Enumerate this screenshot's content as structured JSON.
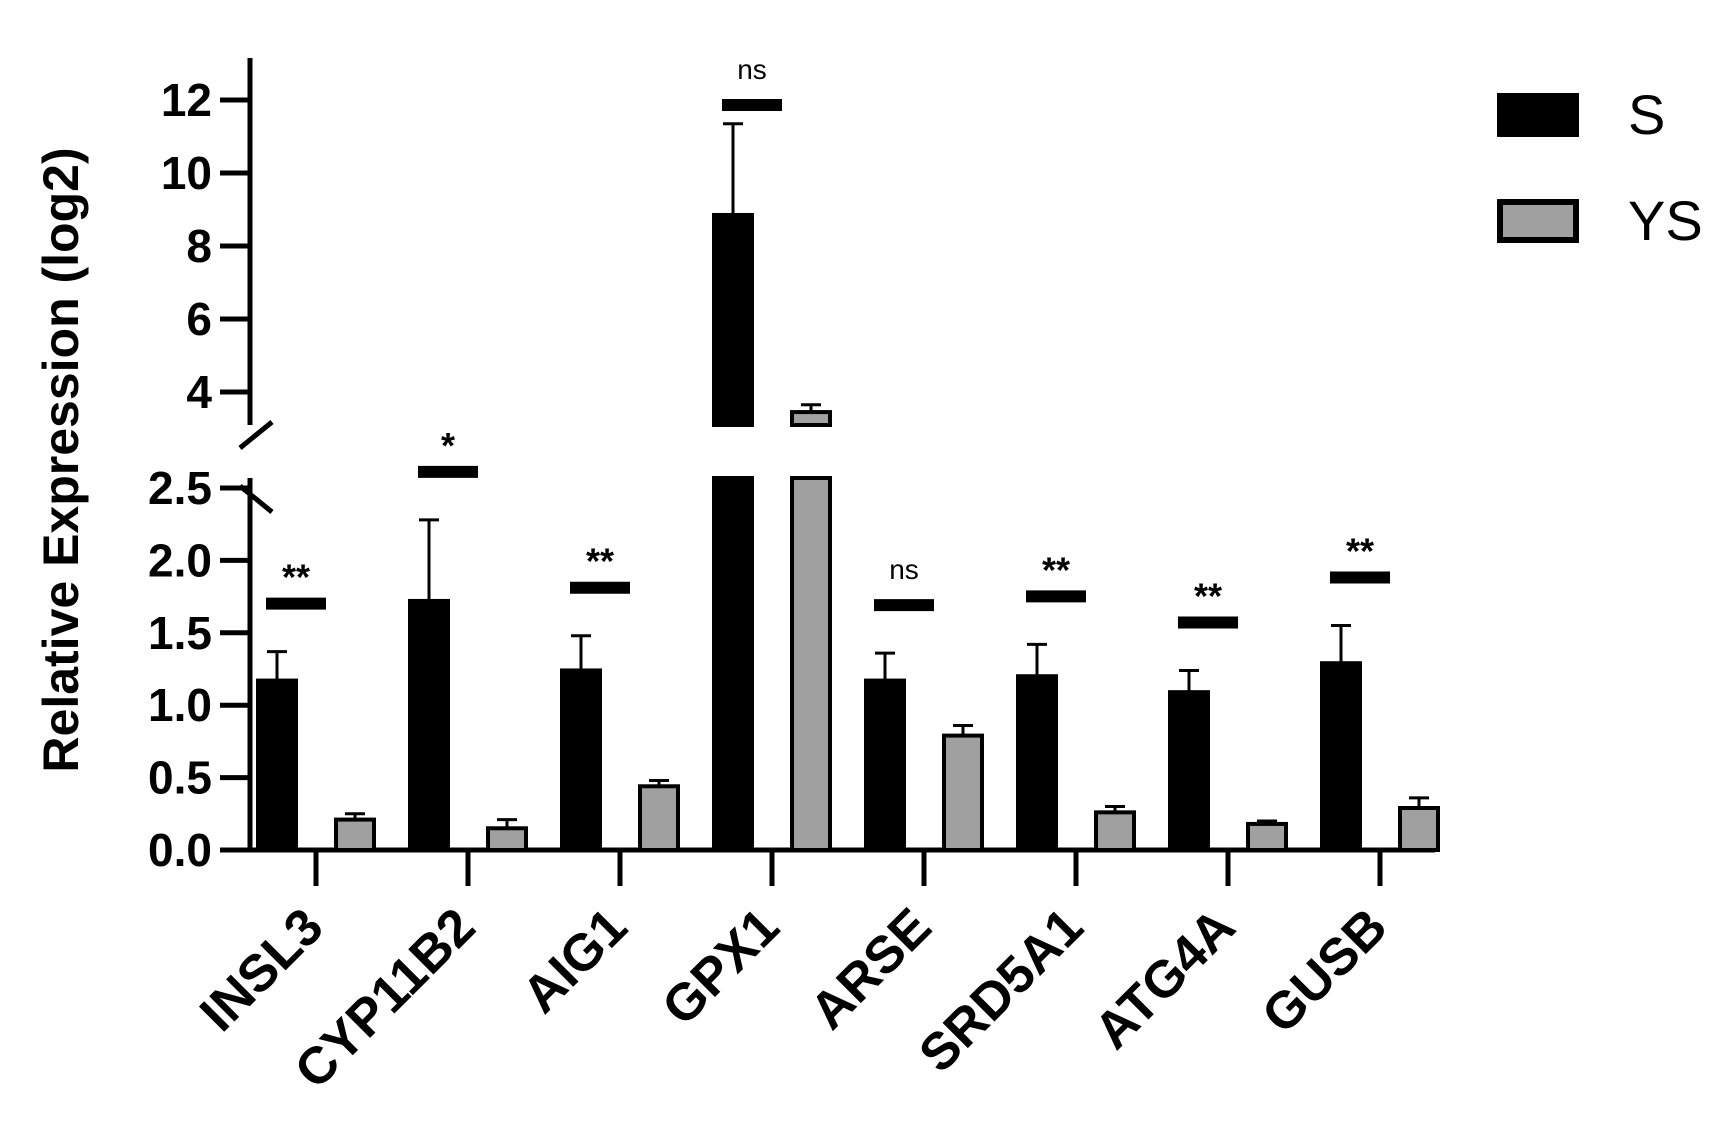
{
  "chart_data": {
    "type": "bar",
    "ylabel": "Relative Expression (log2)",
    "xlabel": "",
    "y_axis_break": {
      "lower_segment": {
        "ylim": [
          0,
          2.5
        ],
        "ticks": [
          "0.0",
          "0.5",
          "1.0",
          "1.5",
          "2.0",
          "2.5"
        ]
      },
      "upper_segment": {
        "ylim": [
          3.4,
          12.7
        ],
        "ticks": [
          "4",
          "6",
          "8",
          "10",
          "12"
        ]
      }
    },
    "categories": [
      "INSL3",
      "CYP11B2",
      "AIG1",
      "GPX1",
      "ARSE",
      "SRD5A1",
      "ATG4A",
      "GUSB"
    ],
    "series": [
      {
        "name": "S",
        "color": "#000000",
        "values": [
          1.17,
          1.72,
          1.24,
          8.85,
          1.17,
          1.2,
          1.09,
          1.29
        ],
        "errors": [
          0.2,
          0.56,
          0.24,
          2.5,
          0.19,
          0.22,
          0.15,
          0.26
        ]
      },
      {
        "name": "YS",
        "color": "#a0a0a0",
        "values": [
          0.21,
          0.15,
          0.44,
          3.45,
          0.79,
          0.26,
          0.18,
          0.29
        ],
        "errors": [
          0.04,
          0.06,
          0.04,
          0.2,
          0.07,
          0.04,
          0.02,
          0.07
        ]
      }
    ],
    "significance": [
      "**",
      "*",
      "**",
      "ns",
      "ns",
      "**",
      "**",
      "**"
    ],
    "legend": {
      "position": "top-right",
      "entries": [
        "S",
        "YS"
      ]
    },
    "grid": false
  }
}
